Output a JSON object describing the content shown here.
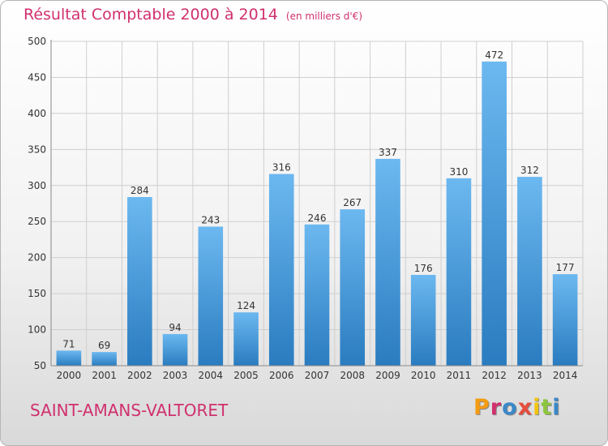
{
  "header": {
    "title": "Résultat Comptable 2000 à 2014",
    "unit": "(en milliers d'€)"
  },
  "footer": {
    "place": "SAINT-AMANS-VALTORET",
    "logo_letters": [
      "P",
      "r",
      "o",
      "x",
      "i",
      "t",
      "i"
    ],
    "logo_colors": [
      "#f39c12",
      "#d0306e",
      "#3a88c8",
      "#e74c3c",
      "#f1c40f",
      "#8cc63f",
      "#3a88c8"
    ]
  },
  "colors": {
    "bar_top": "#6cb8f0",
    "bar_bottom": "#2a7cc0",
    "grid": "#cfcfcf",
    "title": "#d0306e"
  },
  "chart_data": {
    "type": "bar",
    "title": "Résultat Comptable 2000 à 2014",
    "subtitle": "(en milliers d'€)",
    "xlabel": "",
    "ylabel": "",
    "categories": [
      "2000",
      "2001",
      "2002",
      "2003",
      "2004",
      "2005",
      "2006",
      "2007",
      "2008",
      "2009",
      "2010",
      "2011",
      "2012",
      "2013",
      "2014"
    ],
    "values": [
      71,
      69,
      284,
      94,
      243,
      124,
      316,
      246,
      267,
      337,
      176,
      310,
      472,
      312,
      177
    ],
    "ylim": [
      50,
      500
    ],
    "yticks": [
      50,
      100,
      150,
      200,
      250,
      300,
      350,
      400,
      450,
      500
    ],
    "grid": true,
    "data_labels": true
  }
}
